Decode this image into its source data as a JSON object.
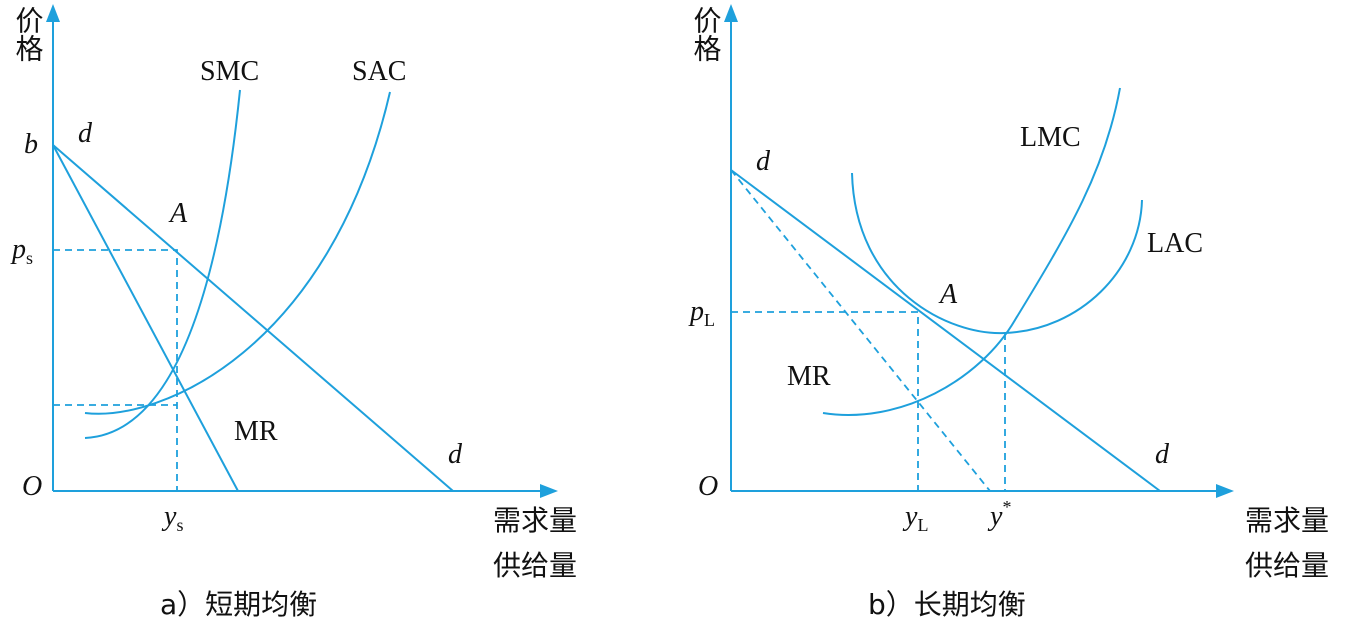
{
  "panels": [
    {
      "y_axis_label": "价格",
      "x_axis_label_1": "需求量",
      "x_axis_label_2": "供给量",
      "origin": "O",
      "price_intercept": "b",
      "demand_label_top": "d",
      "demand_label_bottom": "d",
      "smc_label": "SMC",
      "sac_label": "SAC",
      "point": "A",
      "mr_label": "MR",
      "price": {
        "main": "p",
        "sub": "s"
      },
      "quantity": {
        "main": "y",
        "sub": "s"
      },
      "caption": "a）短期均衡"
    },
    {
      "y_axis_label": "价格",
      "x_axis_label_1": "需求量",
      "x_axis_label_2": "供给量",
      "origin": "O",
      "demand_label_top": "d",
      "demand_label_bottom": "d",
      "lmc_label": "LMC",
      "lac_label": "LAC",
      "point": "A",
      "mr_label": "MR",
      "price": {
        "main": "p",
        "sub": "L"
      },
      "quantity": {
        "main": "y",
        "sub": "L"
      },
      "quantity_star": {
        "main": "y",
        "sup": "*"
      },
      "caption": "b）长期均衡"
    }
  ]
}
